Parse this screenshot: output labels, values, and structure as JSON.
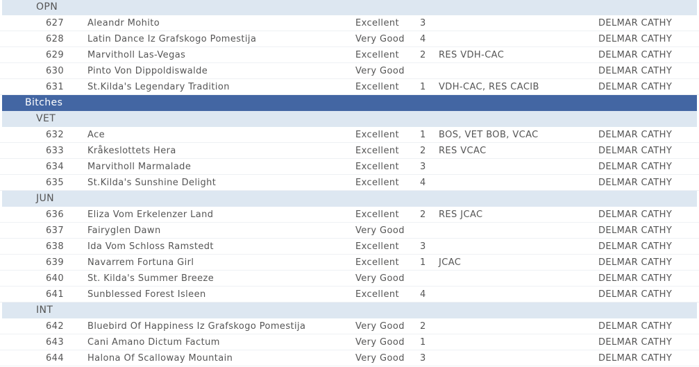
{
  "sections": [
    {
      "type": "class",
      "label": "OPN",
      "entries": [
        {
          "num": "627",
          "name": "Aleandr Mohito",
          "grade": "Excellent",
          "place": "3",
          "awards": "",
          "judge": "DELMAR CATHY"
        },
        {
          "num": "628",
          "name": "Latin Dance Iz Grafskogo Pomestija",
          "grade": "Very Good",
          "place": "4",
          "awards": "",
          "judge": "DELMAR CATHY"
        },
        {
          "num": "629",
          "name": "Marvitholl Las-Vegas",
          "grade": "Excellent",
          "place": "2",
          "awards": "RES VDH-CAC",
          "judge": "DELMAR CATHY"
        },
        {
          "num": "630",
          "name": "Pinto Von Dippoldiswalde",
          "grade": "Very Good",
          "place": "",
          "awards": "",
          "judge": "DELMAR CATHY"
        },
        {
          "num": "631",
          "name": "St.Kilda's Legendary Tradition",
          "grade": "Excellent",
          "place": "1",
          "awards": "VDH-CAC, RES CACIB",
          "judge": "DELMAR CATHY"
        }
      ]
    },
    {
      "type": "group",
      "label": "Bitches",
      "entries": []
    },
    {
      "type": "class",
      "label": "VET",
      "entries": [
        {
          "num": "632",
          "name": "Ace",
          "grade": "Excellent",
          "place": "1",
          "awards": "BOS, VET BOB, VCAC",
          "judge": "DELMAR CATHY"
        },
        {
          "num": "633",
          "name": "Kråkeslottets Hera",
          "grade": "Excellent",
          "place": "2",
          "awards": "RES VCAC",
          "judge": "DELMAR CATHY"
        },
        {
          "num": "634",
          "name": "Marvitholl Marmalade",
          "grade": "Excellent",
          "place": "3",
          "awards": "",
          "judge": "DELMAR CATHY"
        },
        {
          "num": "635",
          "name": "St.Kilda's Sunshine Delight",
          "grade": "Excellent",
          "place": "4",
          "awards": "",
          "judge": "DELMAR CATHY"
        }
      ]
    },
    {
      "type": "class",
      "label": "JUN",
      "entries": [
        {
          "num": "636",
          "name": "Eliza Vom Erkelenzer Land",
          "grade": "Excellent",
          "place": "2",
          "awards": "RES JCAC",
          "judge": "DELMAR CATHY"
        },
        {
          "num": "637",
          "name": "Fairyglen Dawn",
          "grade": "Very Good",
          "place": "",
          "awards": "",
          "judge": "DELMAR CATHY"
        },
        {
          "num": "638",
          "name": "Ida Vom Schloss Ramstedt",
          "grade": "Excellent",
          "place": "3",
          "awards": "",
          "judge": "DELMAR CATHY"
        },
        {
          "num": "639",
          "name": "Navarrem Fortuna Girl",
          "grade": "Excellent",
          "place": "1",
          "awards": "JCAC",
          "judge": "DELMAR CATHY"
        },
        {
          "num": "640",
          "name": "St. Kilda's Summer Breeze",
          "grade": "Very Good",
          "place": "",
          "awards": "",
          "judge": "DELMAR CATHY"
        },
        {
          "num": "641",
          "name": "Sunblessed Forest Isleen",
          "grade": "Excellent",
          "place": "4",
          "awards": "",
          "judge": "DELMAR CATHY"
        }
      ]
    },
    {
      "type": "class",
      "label": "INT",
      "entries": [
        {
          "num": "642",
          "name": "Bluebird Of Happiness Iz Grafskogo Pomestija",
          "grade": "Very Good",
          "place": "2",
          "awards": "",
          "judge": "DELMAR CATHY"
        },
        {
          "num": "643",
          "name": "Cani Amano Dictum Factum",
          "grade": "Very Good",
          "place": "1",
          "awards": "",
          "judge": "DELMAR CATHY"
        },
        {
          "num": "644",
          "name": "Halona Of Scalloway Mountain",
          "grade": "Very Good",
          "place": "3",
          "awards": "",
          "judge": "DELMAR CATHY"
        }
      ]
    }
  ],
  "colors": {
    "group_header": "#4366a3",
    "class_header": "#dde7f1",
    "text": "#555555"
  }
}
